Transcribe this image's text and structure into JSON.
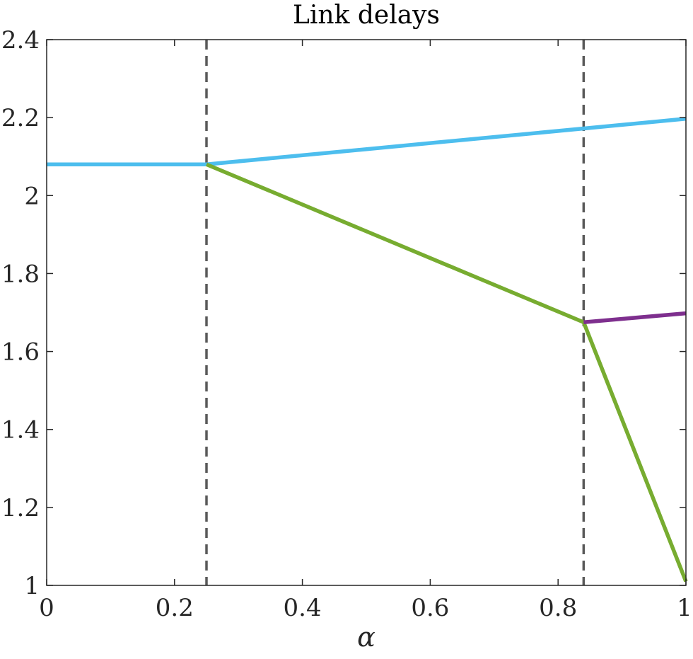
{
  "chart_data": {
    "type": "line",
    "title": "Link delays",
    "xlabel": "α",
    "ylabel": "",
    "xlim": [
      0,
      1
    ],
    "ylim": [
      1,
      2.4
    ],
    "xticks": [
      0,
      0.2,
      0.4,
      0.6,
      0.8,
      1
    ],
    "xtick_labels": [
      "0",
      "0.2",
      "0.4",
      "0.6",
      "0.8",
      "1"
    ],
    "yticks": [
      1,
      1.2,
      1.4,
      1.6,
      1.8,
      2,
      2.2,
      2.4
    ],
    "ytick_labels": [
      "1",
      "1.2",
      "1.4",
      "1.6",
      "1.8",
      "2",
      "2.2",
      "2.4"
    ],
    "grid": false,
    "series": [
      {
        "color": "#4DBEEE",
        "points": [
          [
            0,
            2.08
          ],
          [
            0.25,
            2.08
          ],
          [
            1,
            2.197
          ]
        ]
      },
      {
        "color": "#77AC30",
        "points": [
          [
            0.25,
            2.08
          ],
          [
            0.84,
            1.675
          ],
          [
            1,
            1.01
          ]
        ]
      },
      {
        "color": "#7E2F8E",
        "points": [
          [
            0.84,
            1.675
          ],
          [
            1,
            1.698
          ]
        ]
      }
    ],
    "vlines": [
      {
        "x": 0.25,
        "color": "#595959",
        "style": "dashed"
      },
      {
        "x": 0.84,
        "color": "#595959",
        "style": "dashed"
      }
    ]
  }
}
